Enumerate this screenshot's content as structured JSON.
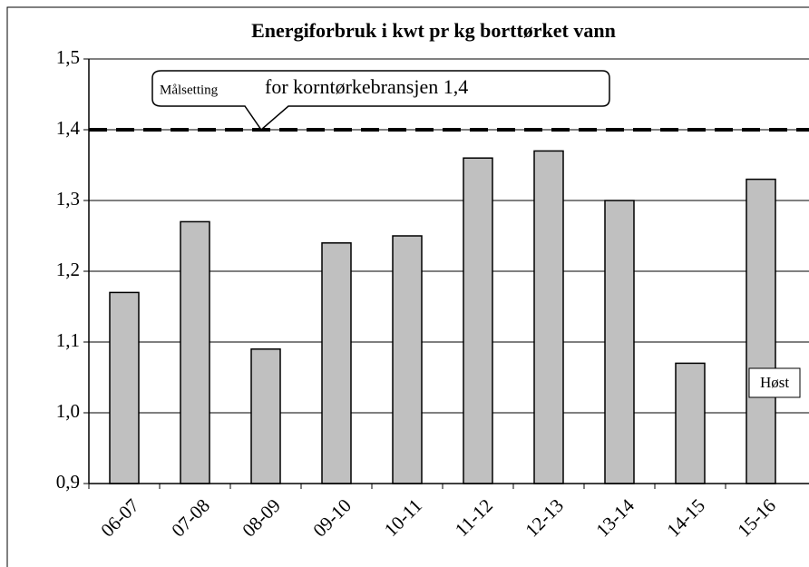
{
  "chart_data": {
    "type": "bar",
    "title": "Energiforbruk i kwt pr kg borttørket vann",
    "categories": [
      "06-07",
      "07-08",
      "08-09",
      "09-10",
      "10-11",
      "11-12",
      "12-13",
      "13-14",
      "14-15",
      "15-16"
    ],
    "values": [
      1.17,
      1.27,
      1.09,
      1.24,
      1.25,
      1.36,
      1.37,
      1.3,
      1.07,
      1.33
    ],
    "color": "#c0c0c0",
    "ylim": [
      0.9,
      1.5
    ],
    "yticks": [
      {
        "value": 0.9,
        "label": "0,9"
      },
      {
        "value": 1.0,
        "label": "1,0"
      },
      {
        "value": 1.1,
        "label": "1,1"
      },
      {
        "value": 1.2,
        "label": "1,2"
      },
      {
        "value": 1.3,
        "label": "1,3"
      },
      {
        "value": 1.4,
        "label": "1,4"
      },
      {
        "value": 1.5,
        "label": "1,5"
      }
    ],
    "grid": true,
    "target": 1.4,
    "annotation": {
      "small": "Målsetting",
      "large": "for korntørkebransjen 1,4"
    },
    "series_label": "Høst"
  }
}
